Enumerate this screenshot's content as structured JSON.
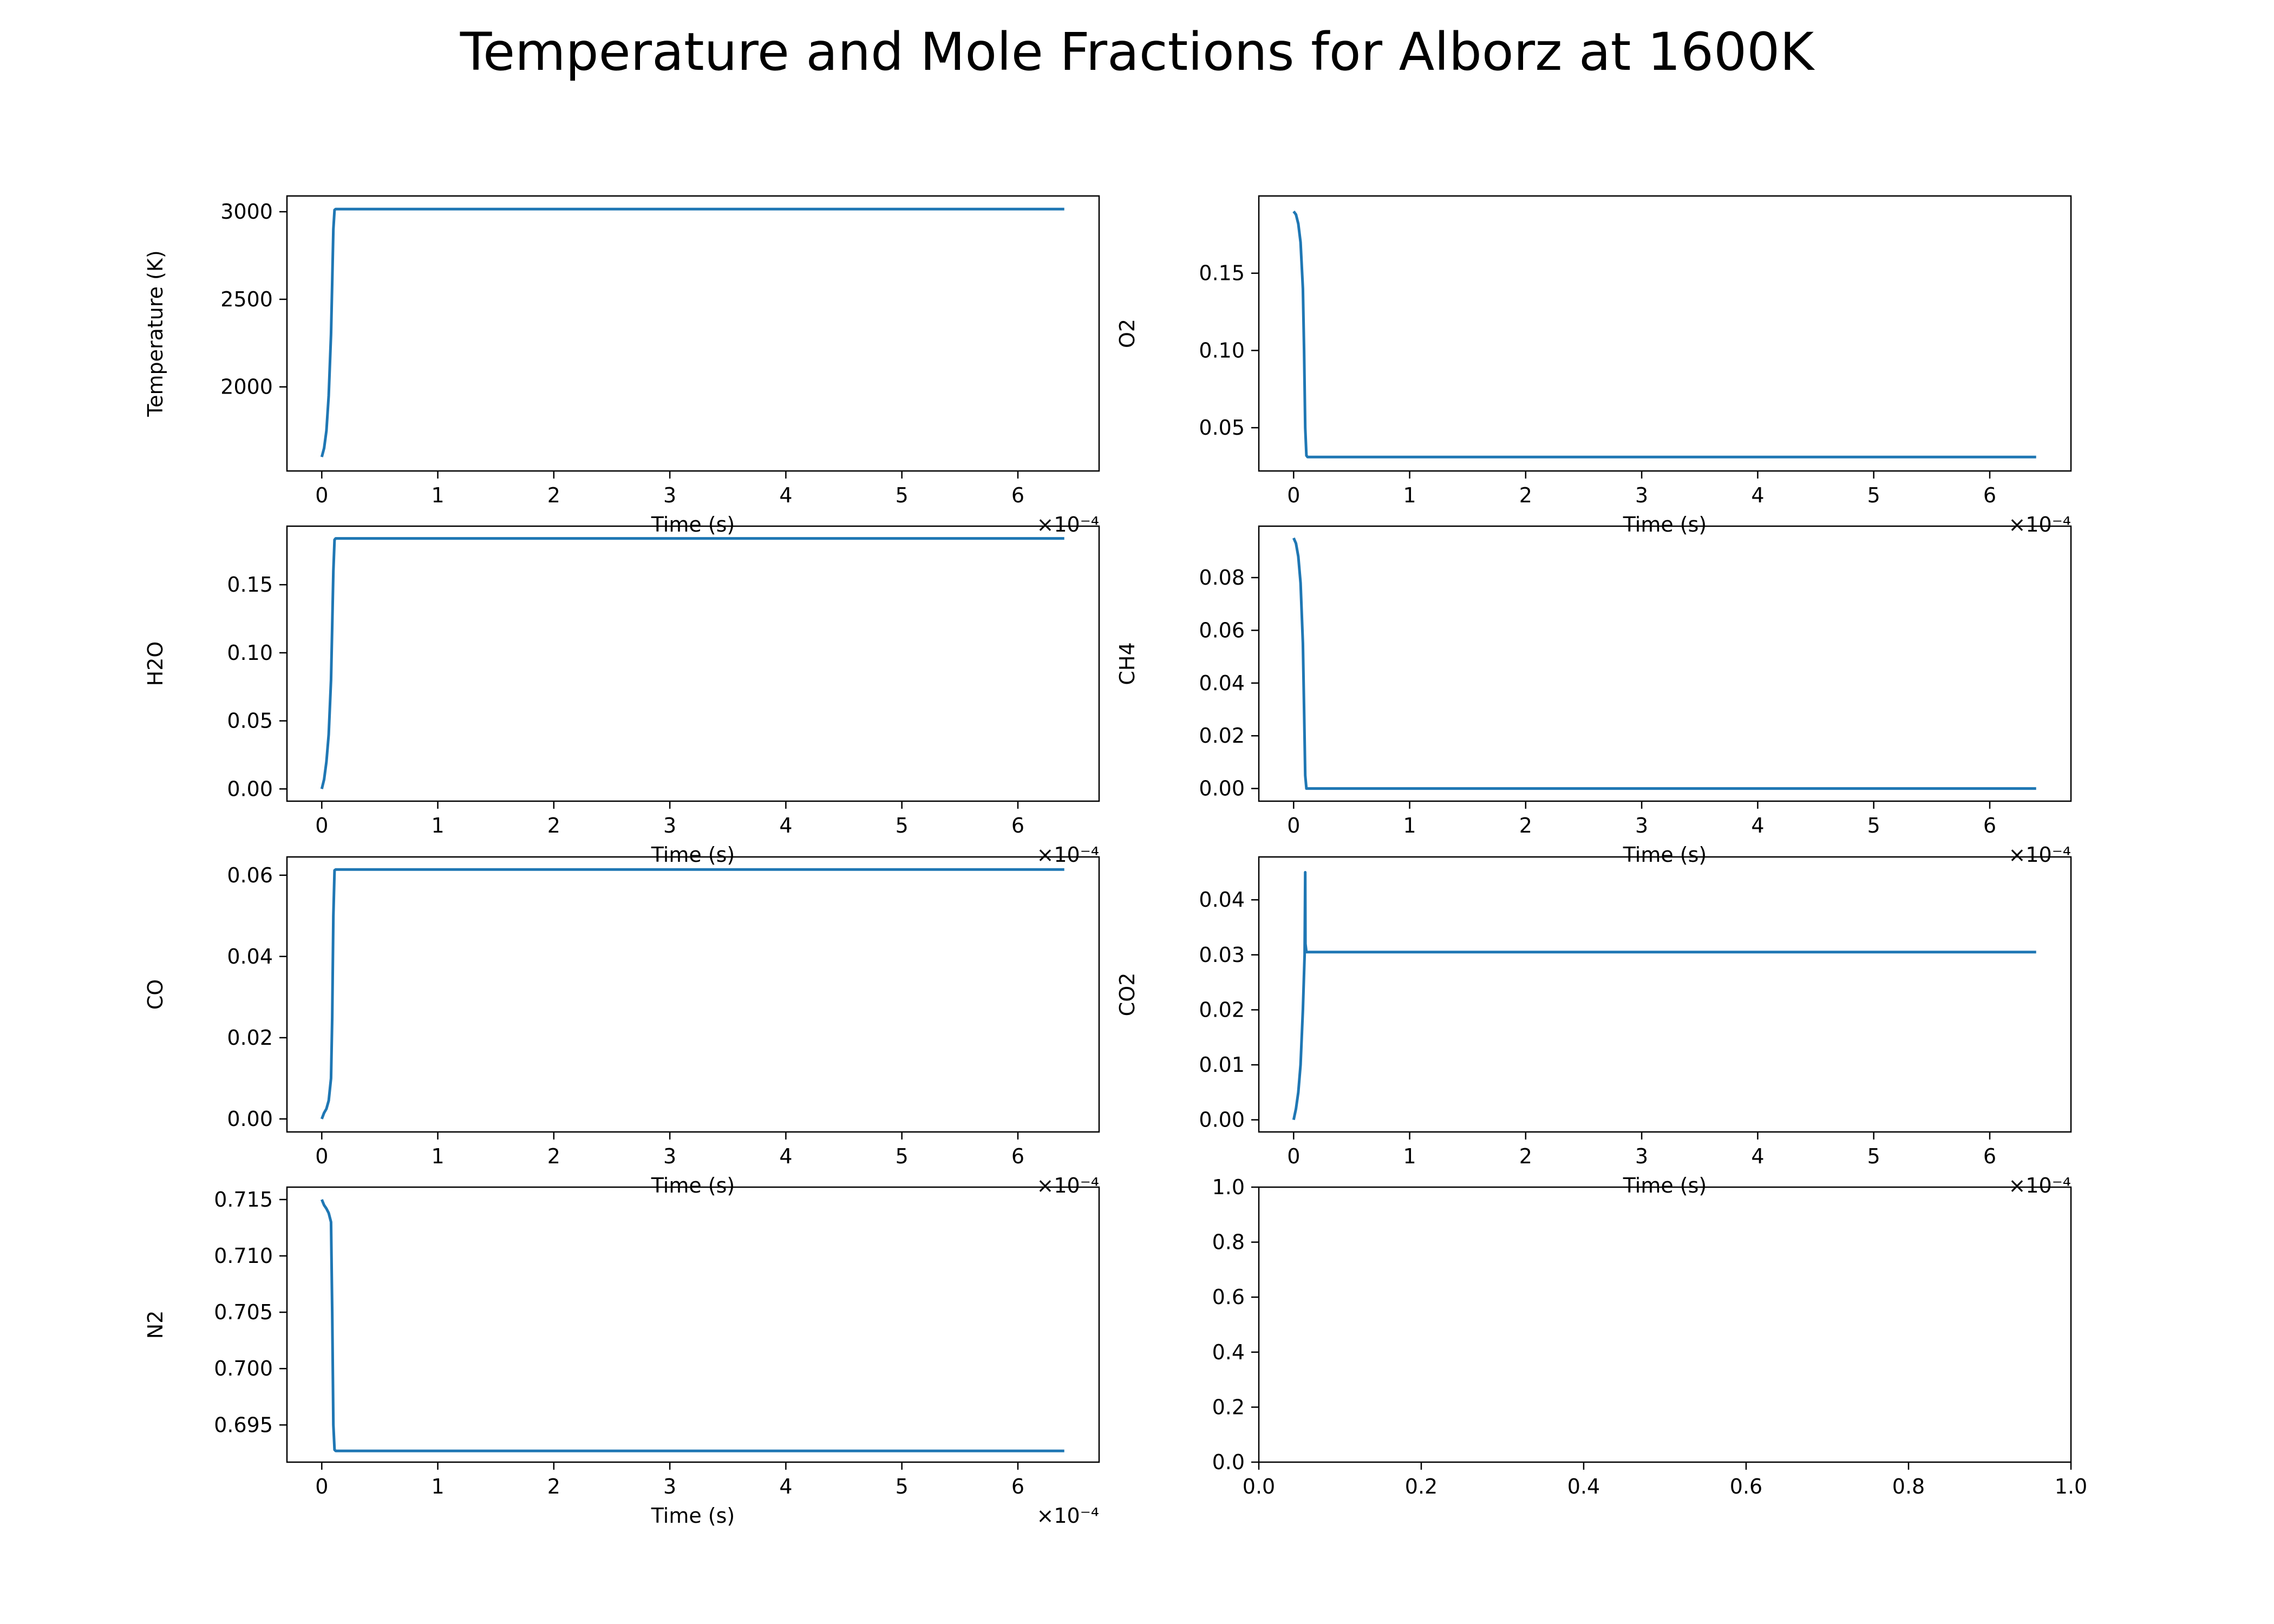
{
  "figure": {
    "title": "Temperature and Mole Fractions for Alborz at 1600K",
    "line_color": "#1f77b4"
  },
  "chart_data": [
    {
      "type": "line",
      "name": "temperature",
      "xlabel": "Time (s)",
      "ylabel": "Temperature (K)",
      "x_multiplier": "×10⁻⁴",
      "xlim": [
        -0.3,
        6.7
      ],
      "ylim": [
        1520,
        3090
      ],
      "xticks": [
        0,
        1,
        2,
        3,
        4,
        5,
        6
      ],
      "yticks": [
        2000,
        2500,
        3000
      ],
      "x": [
        0,
        0.02,
        0.04,
        0.06,
        0.08,
        0.09,
        0.1,
        0.11,
        0.12,
        6.4
      ],
      "y": [
        1600,
        1650,
        1750,
        1950,
        2300,
        2600,
        2900,
        3010,
        3015,
        3015
      ]
    },
    {
      "type": "line",
      "name": "o2",
      "xlabel": "Time (s)",
      "ylabel": "O2",
      "x_multiplier": "×10⁻⁴",
      "xlim": [
        -0.3,
        6.7
      ],
      "ylim": [
        0.022,
        0.2
      ],
      "xticks": [
        0,
        1,
        2,
        3,
        4,
        5,
        6
      ],
      "yticks": [
        0.05,
        0.1,
        0.15
      ],
      "ytick_labels": [
        "0.05",
        "0.10",
        "0.15"
      ],
      "x": [
        0,
        0.02,
        0.04,
        0.06,
        0.08,
        0.09,
        0.1,
        0.11,
        0.12,
        6.4
      ],
      "y": [
        0.19,
        0.188,
        0.182,
        0.17,
        0.14,
        0.1,
        0.05,
        0.032,
        0.031,
        0.031
      ]
    },
    {
      "type": "line",
      "name": "h2o",
      "xlabel": "Time (s)",
      "ylabel": "H2O",
      "x_multiplier": "×10⁻⁴",
      "xlim": [
        -0.3,
        6.7
      ],
      "ylim": [
        -0.009,
        0.193
      ],
      "xticks": [
        0,
        1,
        2,
        3,
        4,
        5,
        6
      ],
      "yticks": [
        0,
        0.05,
        0.1,
        0.15
      ],
      "ytick_labels": [
        "0.00",
        "0.05",
        "0.10",
        "0.15"
      ],
      "x": [
        0,
        0.02,
        0.04,
        0.06,
        0.08,
        0.09,
        0.1,
        0.11,
        0.12,
        6.4
      ],
      "y": [
        0.0,
        0.007,
        0.02,
        0.04,
        0.08,
        0.12,
        0.16,
        0.183,
        0.184,
        0.184
      ]
    },
    {
      "type": "line",
      "name": "ch4",
      "xlabel": "Time (s)",
      "ylabel": "CH4",
      "x_multiplier": "×10⁻⁴",
      "xlim": [
        -0.3,
        6.7
      ],
      "ylim": [
        -0.0048,
        0.0995
      ],
      "xticks": [
        0,
        1,
        2,
        3,
        4,
        5,
        6
      ],
      "yticks": [
        0,
        0.02,
        0.04,
        0.06,
        0.08
      ],
      "ytick_labels": [
        "0.00",
        "0.02",
        "0.04",
        "0.06",
        "0.08"
      ],
      "x": [
        0,
        0.02,
        0.04,
        0.06,
        0.08,
        0.09,
        0.1,
        0.11,
        0.12,
        6.4
      ],
      "y": [
        0.095,
        0.093,
        0.088,
        0.078,
        0.055,
        0.03,
        0.005,
        0.0,
        0.0,
        0.0
      ]
    },
    {
      "type": "line",
      "name": "co",
      "xlabel": "Time (s)",
      "ylabel": "CO",
      "x_multiplier": "×10⁻⁴",
      "xlim": [
        -0.3,
        6.7
      ],
      "ylim": [
        -0.0032,
        0.0645
      ],
      "xticks": [
        0,
        1,
        2,
        3,
        4,
        5,
        6
      ],
      "yticks": [
        0,
        0.02,
        0.04,
        0.06
      ],
      "ytick_labels": [
        "0.00",
        "0.02",
        "0.04",
        "0.06"
      ],
      "x": [
        0,
        0.02,
        0.04,
        0.06,
        0.08,
        0.09,
        0.1,
        0.11,
        0.12,
        6.4
      ],
      "y": [
        0.0,
        0.0015,
        0.0025,
        0.0045,
        0.01,
        0.025,
        0.05,
        0.0612,
        0.0614,
        0.0614
      ]
    },
    {
      "type": "line",
      "name": "co2",
      "xlabel": "Time (s)",
      "ylabel": "CO2",
      "x_multiplier": "×10⁻⁴",
      "xlim": [
        -0.3,
        6.7
      ],
      "ylim": [
        -0.0022,
        0.0478
      ],
      "xticks": [
        0,
        1,
        2,
        3,
        4,
        5,
        6
      ],
      "yticks": [
        0,
        0.01,
        0.02,
        0.03,
        0.04
      ],
      "ytick_labels": [
        "0.00",
        "0.01",
        "0.02",
        "0.03",
        "0.04"
      ],
      "x": [
        0,
        0.02,
        0.04,
        0.06,
        0.08,
        0.095,
        0.1,
        0.102,
        0.11,
        6.4
      ],
      "y": [
        0.0,
        0.002,
        0.005,
        0.01,
        0.02,
        0.03,
        0.045,
        0.032,
        0.0305,
        0.0305
      ]
    },
    {
      "type": "line",
      "name": "n2",
      "xlabel": "Time (s)",
      "ylabel": "N2",
      "x_multiplier": "×10⁻⁴",
      "xlim": [
        -0.3,
        6.7
      ],
      "ylim": [
        0.6917,
        0.7161
      ],
      "xticks": [
        0,
        1,
        2,
        3,
        4,
        5,
        6
      ],
      "yticks": [
        0.695,
        0.7,
        0.705,
        0.71,
        0.715
      ],
      "ytick_labels": [
        "0.695",
        "0.700",
        "0.705",
        "0.710",
        "0.715"
      ],
      "x": [
        0,
        0.02,
        0.04,
        0.06,
        0.08,
        0.09,
        0.1,
        0.11,
        0.12,
        6.4
      ],
      "y": [
        0.715,
        0.7145,
        0.7142,
        0.7138,
        0.713,
        0.705,
        0.695,
        0.6928,
        0.6927,
        0.6927
      ]
    },
    {
      "type": "line",
      "name": "empty",
      "xlabel": "",
      "ylabel": "",
      "x_multiplier": "",
      "xlim": [
        0,
        1
      ],
      "ylim": [
        0,
        1
      ],
      "xticks": [
        0,
        0.2,
        0.4,
        0.6,
        0.8,
        1
      ],
      "xtick_labels": [
        "0.0",
        "0.2",
        "0.4",
        "0.6",
        "0.8",
        "1.0"
      ],
      "yticks": [
        0,
        0.2,
        0.4,
        0.6,
        0.8,
        1
      ],
      "ytick_labels": [
        "0.0",
        "0.2",
        "0.4",
        "0.6",
        "0.8",
        "1.0"
      ],
      "x": [],
      "y": []
    }
  ]
}
